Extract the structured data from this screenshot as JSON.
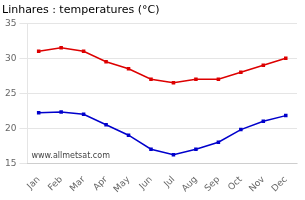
{
  "chart_data": {
    "type": "line",
    "title": "Linhares : temperatures (°C)",
    "categories": [
      "Jan",
      "Feb",
      "Mar",
      "Apr",
      "May",
      "Jun",
      "Jul",
      "Aug",
      "Sep",
      "Oct",
      "Nov",
      "Dec"
    ],
    "series": [
      {
        "color": "#dd0000",
        "marker": "square",
        "values": [
          31.0,
          31.5,
          31.0,
          29.5,
          28.5,
          27.0,
          26.5,
          27.0,
          27.0,
          28.0,
          29.0,
          30.0
        ]
      },
      {
        "color": "#0000cc",
        "marker": "square",
        "values": [
          22.2,
          22.3,
          22.0,
          20.5,
          19.0,
          17.0,
          16.2,
          17.0,
          18.0,
          19.8,
          21.0,
          21.8
        ]
      }
    ],
    "ylim": [
      15,
      35
    ],
    "yticks": [
      15,
      20,
      25,
      30,
      35
    ],
    "grid": true,
    "annotation": "www.allmetsat.com"
  }
}
